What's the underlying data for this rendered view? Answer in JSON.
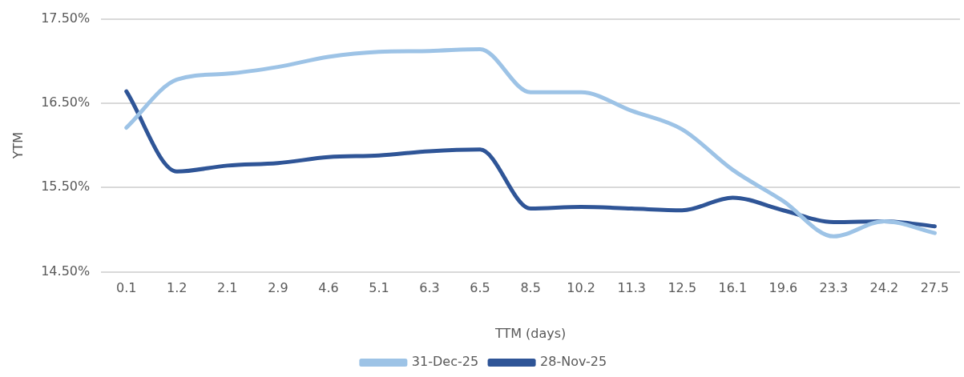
{
  "chart_data": {
    "type": "line",
    "xlabel": "TTM (days)",
    "ylabel": "YTM",
    "categories": [
      "0.1",
      "1.2",
      "2.1",
      "2.9",
      "4.6",
      "5.1",
      "6.3",
      "6.5",
      "8.5",
      "10.2",
      "11.3",
      "12.5",
      "16.1",
      "19.6",
      "23.3",
      "24.2",
      "27.5"
    ],
    "series": [
      {
        "name": "31-Dec-25",
        "color": "#9dc3e6",
        "values": [
          16.21,
          16.78,
          16.85,
          16.93,
          17.05,
          17.11,
          17.12,
          17.14,
          16.63,
          16.63,
          16.41,
          16.19,
          15.71,
          15.34,
          14.92,
          15.1,
          14.96
        ]
      },
      {
        "name": "28-Nov-25",
        "color": "#2f5597",
        "values": [
          16.64,
          15.69,
          15.76,
          15.79,
          15.86,
          15.88,
          15.93,
          15.95,
          15.25,
          15.27,
          15.25,
          15.23,
          15.38,
          15.23,
          15.09,
          15.1,
          15.04
        ]
      }
    ],
    "ylim": [
      14.5,
      17.5
    ],
    "yticks": [
      {
        "value": 14.5,
        "label": "14.50%"
      },
      {
        "value": 15.5,
        "label": "15.50%"
      },
      {
        "value": 16.5,
        "label": "16.50%"
      },
      {
        "value": 17.5,
        "label": "17.50%"
      }
    ],
    "grid": "y",
    "legend": "bottom",
    "marker": "none",
    "line_style": "solid"
  }
}
